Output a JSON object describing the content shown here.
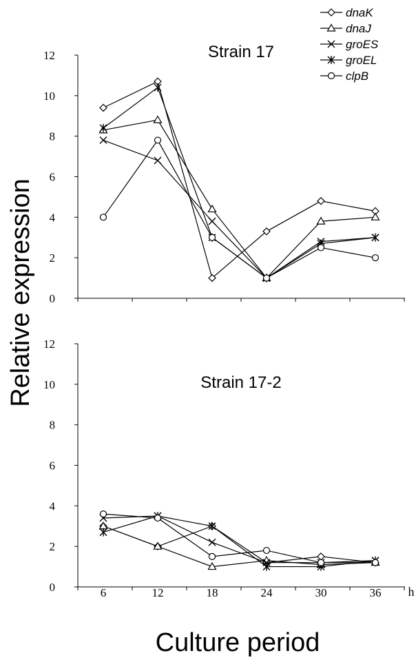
{
  "figure": {
    "ylabel": "Relative expression",
    "xlabel": "Culture period",
    "x_unit": "h"
  },
  "legend": {
    "placement": "top-right",
    "entries": [
      {
        "name": "dnaK",
        "marker": "diamond"
      },
      {
        "name": "dnaJ",
        "marker": "triangle"
      },
      {
        "name": "groES",
        "marker": "x"
      },
      {
        "name": "groEL",
        "marker": "asterisk"
      },
      {
        "name": "clpB",
        "marker": "circle"
      }
    ]
  },
  "chart_data": [
    {
      "type": "line",
      "title": "Strain 17",
      "x": [
        6,
        12,
        18,
        24,
        30,
        36
      ],
      "x_tick_labels": [],
      "y_tick_labels": [
        "0",
        "2",
        "4",
        "6",
        "8",
        "10",
        "12"
      ],
      "ylim": [
        0,
        12
      ],
      "grid": false,
      "series": [
        {
          "name": "dnaK",
          "marker": "diamond",
          "values": [
            9.4,
            10.7,
            1.0,
            3.3,
            4.8,
            4.3
          ]
        },
        {
          "name": "dnaJ",
          "marker": "triangle",
          "values": [
            8.3,
            8.8,
            4.4,
            1.0,
            3.8,
            4.0
          ]
        },
        {
          "name": "groES",
          "marker": "x",
          "values": [
            7.8,
            6.8,
            3.8,
            1.0,
            2.8,
            3.0
          ]
        },
        {
          "name": "groEL",
          "marker": "asterisk",
          "values": [
            8.4,
            10.4,
            3.0,
            1.0,
            2.7,
            3.0
          ]
        },
        {
          "name": "clpB",
          "marker": "circle",
          "values": [
            4.0,
            7.8,
            3.0,
            1.0,
            2.5,
            2.0
          ]
        }
      ]
    },
    {
      "type": "line",
      "title": "Strain 17-2",
      "x": [
        6,
        12,
        18,
        24,
        30,
        36
      ],
      "x_tick_labels": [
        "6",
        "12",
        "18",
        "24",
        "30",
        "36"
      ],
      "y_tick_labels": [
        "0",
        "2",
        "4",
        "6",
        "8",
        "10",
        "12"
      ],
      "ylim": [
        0,
        12
      ],
      "grid": false,
      "series": [
        {
          "name": "dnaK",
          "marker": "diamond",
          "values": [
            3.0,
            2.0,
            3.0,
            1.2,
            1.5,
            1.2
          ]
        },
        {
          "name": "dnaJ",
          "marker": "triangle",
          "values": [
            3.0,
            2.0,
            1.0,
            1.3,
            1.1,
            1.2
          ]
        },
        {
          "name": "groES",
          "marker": "x",
          "values": [
            3.4,
            3.5,
            2.2,
            1.2,
            1.2,
            1.3
          ]
        },
        {
          "name": "groEL",
          "marker": "asterisk",
          "values": [
            2.7,
            3.5,
            3.0,
            1.0,
            1.0,
            1.3
          ]
        },
        {
          "name": "clpB",
          "marker": "circle",
          "values": [
            3.6,
            3.4,
            1.5,
            1.8,
            1.2,
            1.2
          ]
        }
      ]
    }
  ]
}
